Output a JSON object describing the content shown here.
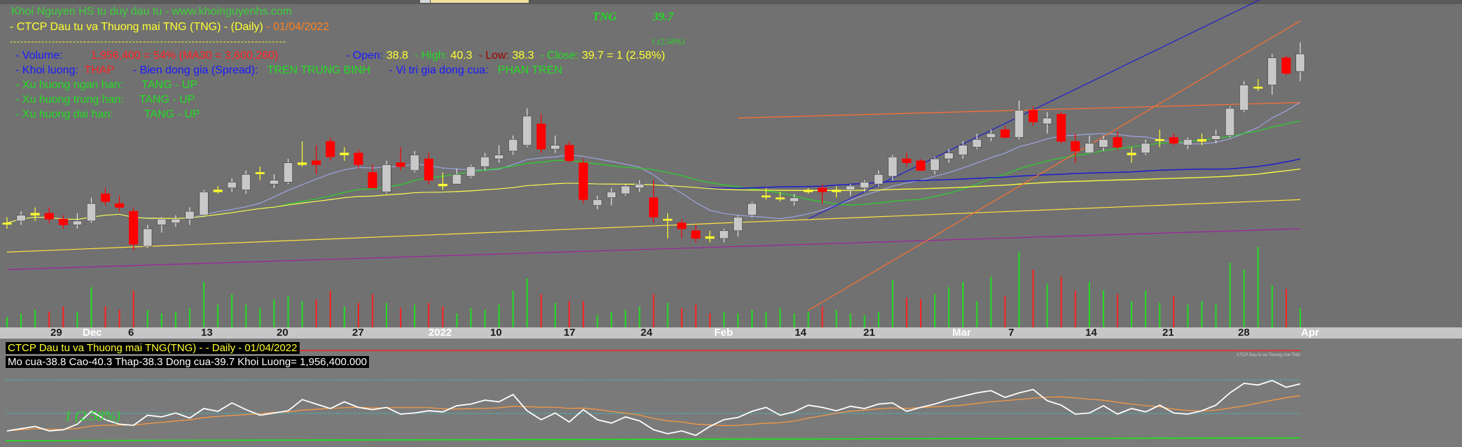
{
  "header": {
    "site": "Khoi Nguyen HS tu duy dau tu - www.khoinguyenhs.com",
    "title_prefix": "- CTCP Dau tu va Thuong mai TNG (TNG) - (Daily)",
    "title_date": "- 01/04/2022",
    "separator": "-------------------------------------------------------------------------------"
  },
  "ticker": {
    "symbol": "TNG",
    "price": "39.7",
    "change": "1 (2.58%)"
  },
  "stats": {
    "volume_label": "- Volume:",
    "volume_value": "1,956,400",
    "volume_pct": "= 54%",
    "ma30": "(MA30 = 3,600,260)",
    "open_label": "- Open:",
    "open_value": "38.8",
    "high_label": "- High:",
    "high_value": "40.3",
    "low_label": "- Low:",
    "low_value": "38.3",
    "close_label": "- Close:",
    "close_value": "39.7  =  1  (2.58%)"
  },
  "analysis": {
    "khoiluong_label": "- Khoi luong:",
    "khoiluong_value": "THAP",
    "spread_label": "-    Bien dong gia (Spread):",
    "spread_value": "TREN TRUNG BINH",
    "vitri_label": "-    Vi tri gia dong cua:",
    "vitri_value": "PHAN TREN",
    "ngan_label": "- Xu huong ngan han:",
    "ngan_value": "TANG - UP",
    "trung_label": "- Xu huong trung han:",
    "trung_value": "TANG - UP",
    "dai_label": "- Xu huong dai han:",
    "dai_value": "TANG - UP"
  },
  "subpanel": {
    "title": "CTCP Dau tu va Thuong mai TNG(TNG) -  - Daily  - 01/04/2022",
    "info": "Mo cua-38.8  Cao-40.3  Thap-38.3  Dong cua-39.7  Khoi Luong= 1,956,400.000",
    "watermark": "CTCP Dau tu va Thuong mai TNG",
    "label": "1 (2.58%)"
  },
  "colors": {
    "up": "#c8c8c8",
    "down": "#ff0000",
    "doji": "#ffff30",
    "vol_up": "#22dd22",
    "vol_down": "#ff2020"
  },
  "chart_data": {
    "type": "candlestick",
    "x_tick_labels": [
      "29",
      "Dec",
      "6",
      "13",
      "20",
      "27",
      "2022",
      "10",
      "17",
      "24",
      "Feb",
      "14",
      "21",
      "Mar",
      "7",
      "14",
      "21",
      "28",
      "Apr"
    ],
    "ohlc": [
      [
        31.0,
        31.3,
        30.7,
        31.0
      ],
      [
        31.1,
        31.6,
        30.9,
        31.4
      ],
      [
        31.4,
        31.8,
        31.1,
        31.5
      ],
      [
        31.5,
        31.8,
        31.0,
        31.2
      ],
      [
        31.2,
        31.4,
        30.7,
        30.9
      ],
      [
        30.9,
        31.5,
        30.7,
        31.1
      ],
      [
        31.1,
        32.3,
        31.0,
        32.0
      ],
      [
        32.5,
        32.8,
        31.9,
        32.1
      ],
      [
        32.0,
        32.4,
        31.6,
        31.8
      ],
      [
        31.6,
        31.8,
        29.6,
        29.9
      ],
      [
        29.8,
        30.9,
        29.7,
        30.7
      ],
      [
        30.9,
        31.3,
        30.5,
        31.2
      ],
      [
        31.0,
        31.4,
        30.8,
        31.2
      ],
      [
        31.2,
        31.8,
        30.9,
        31.6
      ],
      [
        31.4,
        32.7,
        31.3,
        32.6
      ],
      [
        32.6,
        32.9,
        32.5,
        32.7
      ],
      [
        32.8,
        33.3,
        32.6,
        33.1
      ],
      [
        32.7,
        33.7,
        32.5,
        33.5
      ],
      [
        33.6,
        33.9,
        33.2,
        33.6
      ],
      [
        33.0,
        33.5,
        32.8,
        33.2
      ],
      [
        33.1,
        34.3,
        33.0,
        34.1
      ],
      [
        34.0,
        35.2,
        33.9,
        34.1
      ],
      [
        34.2,
        35.0,
        33.5,
        34.0
      ],
      [
        35.2,
        35.4,
        34.2,
        34.4
      ],
      [
        34.5,
        34.9,
        34.2,
        34.6
      ],
      [
        34.6,
        34.8,
        33.8,
        34.0
      ],
      [
        33.6,
        34.0,
        32.8,
        32.8
      ],
      [
        32.6,
        34.2,
        32.5,
        34.0
      ],
      [
        34.1,
        34.9,
        33.7,
        33.9
      ],
      [
        33.7,
        34.7,
        33.6,
        34.5
      ],
      [
        34.3,
        34.6,
        33.0,
        33.2
      ],
      [
        33.0,
        33.6,
        32.7,
        32.9
      ],
      [
        33.0,
        33.8,
        33.0,
        33.5
      ],
      [
        33.4,
        34.0,
        33.3,
        33.9
      ],
      [
        33.9,
        34.6,
        33.7,
        34.4
      ],
      [
        34.3,
        35.0,
        34.1,
        34.5
      ],
      [
        34.7,
        35.5,
        34.5,
        35.3
      ],
      [
        35.0,
        36.9,
        34.9,
        36.5
      ],
      [
        36.1,
        36.6,
        34.6,
        34.8
      ],
      [
        34.8,
        35.5,
        34.6,
        35.0
      ],
      [
        35.0,
        35.2,
        34.1,
        34.2
      ],
      [
        34.1,
        34.3,
        32.0,
        32.2
      ],
      [
        31.9,
        32.4,
        31.7,
        32.2
      ],
      [
        32.3,
        32.8,
        31.9,
        32.6
      ],
      [
        32.5,
        33.0,
        32.4,
        32.9
      ],
      [
        32.8,
        33.2,
        32.6,
        33.0
      ],
      [
        32.3,
        33.2,
        31.0,
        31.3
      ],
      [
        31.2,
        31.5,
        30.2,
        31.2
      ],
      [
        31.0,
        31.2,
        30.2,
        30.7
      ],
      [
        30.6,
        30.9,
        30.0,
        30.2
      ],
      [
        30.3,
        30.6,
        30.0,
        30.2
      ],
      [
        30.2,
        30.7,
        30.0,
        30.6
      ],
      [
        30.6,
        31.4,
        30.3,
        31.3
      ],
      [
        31.4,
        32.1,
        31.3,
        32.0
      ],
      [
        32.4,
        32.8,
        32.2,
        32.4
      ],
      [
        32.3,
        32.6,
        32.1,
        32.3
      ],
      [
        32.1,
        32.5,
        31.9,
        32.3
      ],
      [
        32.6,
        32.8,
        32.5,
        32.7
      ],
      [
        32.8,
        33.0,
        32.0,
        32.6
      ],
      [
        32.6,
        32.9,
        32.3,
        32.7
      ],
      [
        32.7,
        33.0,
        32.4,
        32.9
      ],
      [
        32.8,
        33.2,
        32.6,
        33.1
      ],
      [
        33.0,
        33.7,
        32.9,
        33.5
      ],
      [
        33.4,
        34.5,
        33.2,
        34.4
      ],
      [
        34.3,
        34.6,
        33.9,
        34.1
      ],
      [
        34.2,
        34.3,
        33.7,
        33.7
      ],
      [
        33.7,
        34.4,
        33.5,
        34.3
      ],
      [
        34.3,
        34.8,
        34.1,
        34.6
      ],
      [
        34.5,
        35.2,
        34.3,
        35.0
      ],
      [
        34.9,
        35.6,
        34.8,
        35.3
      ],
      [
        35.4,
        35.8,
        35.2,
        35.6
      ],
      [
        35.8,
        36.0,
        35.4,
        35.4
      ],
      [
        35.4,
        37.3,
        35.3,
        36.8
      ],
      [
        36.8,
        37.0,
        36.0,
        36.2
      ],
      [
        36.1,
        36.7,
        35.6,
        36.4
      ],
      [
        36.6,
        36.7,
        35.1,
        35.2
      ],
      [
        35.2,
        35.6,
        34.1,
        34.7
      ],
      [
        34.6,
        35.5,
        34.6,
        35.1
      ],
      [
        34.9,
        35.5,
        34.7,
        35.3
      ],
      [
        35.4,
        35.7,
        34.8,
        34.9
      ],
      [
        34.5,
        34.9,
        34.1,
        34.6
      ],
      [
        34.6,
        35.3,
        34.5,
        35.1
      ],
      [
        35.3,
        35.8,
        34.9,
        35.3
      ],
      [
        35.4,
        35.6,
        35.0,
        35.1
      ],
      [
        35.0,
        35.4,
        34.8,
        35.3
      ],
      [
        35.2,
        35.6,
        35.0,
        35.3
      ],
      [
        35.3,
        35.8,
        35.1,
        35.5
      ],
      [
        35.5,
        37.0,
        35.4,
        36.9
      ],
      [
        36.8,
        38.3,
        36.7,
        38.1
      ],
      [
        38.0,
        38.4,
        37.8,
        38.0
      ],
      [
        38.1,
        39.7,
        37.6,
        39.5
      ],
      [
        39.5,
        39.6,
        38.6,
        38.7
      ],
      [
        38.8,
        40.3,
        38.3,
        39.7
      ]
    ],
    "volume": [
      0.6,
      0.8,
      1.0,
      0.9,
      1.2,
      0.9,
      2.3,
      1.2,
      1.0,
      2.1,
      1.0,
      0.8,
      0.9,
      1.1,
      2.6,
      1.3,
      1.9,
      1.3,
      1.1,
      1.6,
      1.8,
      1.5,
      1.6,
      2.1,
      1.2,
      1.4,
      1.9,
      1.4,
      1.1,
      1.3,
      1.4,
      1.2,
      0.8,
      1.1,
      1.0,
      1.3,
      2.1,
      2.8,
      1.9,
      1.4,
      1.5,
      1.5,
      0.7,
      0.9,
      1.0,
      1.2,
      1.9,
      1.4,
      1.1,
      1.3,
      0.8,
      0.9,
      0.8,
      1.0,
      0.9,
      1.1,
      0.8,
      0.9,
      1.2,
      1.0,
      0.8,
      0.7,
      0.9,
      2.7,
      1.7,
      1.6,
      1.9,
      2.3,
      2.6,
      1.5,
      2.9,
      1.8,
      4.3,
      3.3,
      2.5,
      2.9,
      2.1,
      2.6,
      2.1,
      1.9,
      1.5,
      2.1,
      1.4,
      1.8,
      1.3,
      1.5,
      1.3,
      3.7,
      3.3,
      4.6,
      2.4,
      2.2,
      1.1
    ],
    "ma30_volume": "3,600,260",
    "oscillator": [
      0.1,
      0.14,
      0.18,
      0.1,
      0.12,
      0.22,
      0.45,
      0.3,
      0.22,
      0.2,
      0.38,
      0.35,
      0.42,
      0.33,
      0.5,
      0.45,
      0.6,
      0.48,
      0.38,
      0.42,
      0.46,
      0.66,
      0.58,
      0.5,
      0.62,
      0.52,
      0.48,
      0.52,
      0.4,
      0.42,
      0.46,
      0.44,
      0.55,
      0.58,
      0.65,
      0.62,
      0.75,
      0.46,
      0.3,
      0.42,
      0.26,
      0.48,
      0.3,
      0.24,
      0.35,
      0.28,
      0.12,
      0.05,
      0.1,
      0.02,
      0.18,
      0.3,
      0.34,
      0.45,
      0.52,
      0.38,
      0.44,
      0.56,
      0.52,
      0.46,
      0.54,
      0.5,
      0.58,
      0.6,
      0.45,
      0.52,
      0.58,
      0.66,
      0.72,
      0.78,
      0.82,
      0.7,
      0.78,
      0.84,
      0.64,
      0.56,
      0.4,
      0.42,
      0.55,
      0.4,
      0.5,
      0.44,
      0.56,
      0.42,
      0.4,
      0.46,
      0.56,
      0.78,
      0.95,
      0.92,
      1.0,
      0.88,
      0.94
    ]
  }
}
